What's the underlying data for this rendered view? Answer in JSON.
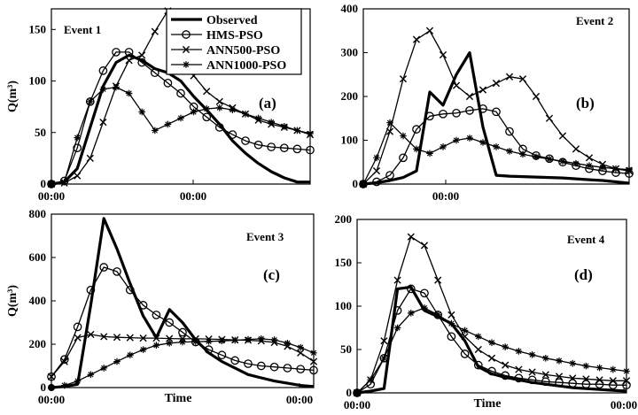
{
  "chart_data": [
    {
      "type": "line",
      "event": "Event 1",
      "panel": "(a)",
      "ylabel": "Q(m³)",
      "xlabel": "",
      "x_ticks": [
        "00:00",
        "00:00"
      ],
      "y_ticks": [
        0,
        50,
        100,
        150
      ],
      "xlim": [
        0,
        1
      ],
      "ylim": [
        0,
        170
      ],
      "series": [
        {
          "name": "Observed",
          "x": [
            0.0,
            0.05,
            0.1,
            0.15,
            0.2,
            0.25,
            0.3,
            0.35,
            0.4,
            0.45,
            0.5,
            0.55,
            0.6,
            0.65,
            0.7,
            0.75,
            0.8,
            0.85,
            0.9,
            0.95,
            1.0
          ],
          "y": [
            0,
            2,
            15,
            55,
            95,
            118,
            125,
            120,
            112,
            108,
            100,
            85,
            72,
            58,
            42,
            30,
            20,
            12,
            6,
            2,
            2
          ]
        },
        {
          "name": "HMS-PSO",
          "x": [
            0.0,
            0.05,
            0.1,
            0.15,
            0.2,
            0.25,
            0.3,
            0.35,
            0.4,
            0.45,
            0.5,
            0.55,
            0.6,
            0.65,
            0.7,
            0.75,
            0.8,
            0.85,
            0.9,
            0.95,
            1.0
          ],
          "y": [
            0,
            3,
            35,
            80,
            110,
            128,
            128,
            118,
            108,
            98,
            88,
            75,
            65,
            55,
            48,
            42,
            38,
            36,
            35,
            34,
            33
          ]
        },
        {
          "name": "ANN500-PSO",
          "x": [
            0.0,
            0.05,
            0.1,
            0.15,
            0.2,
            0.25,
            0.3,
            0.35,
            0.4,
            0.45,
            0.5,
            0.55,
            0.6,
            0.65,
            0.7,
            0.75,
            0.8,
            0.85,
            0.9,
            0.95,
            1.0
          ],
          "y": [
            0,
            1,
            8,
            25,
            60,
            95,
            120,
            125,
            148,
            168,
            140,
            105,
            90,
            80,
            74,
            68,
            62,
            58,
            55,
            52,
            48
          ]
        },
        {
          "name": "ANN1000-PSO",
          "x": [
            0.0,
            0.05,
            0.1,
            0.15,
            0.2,
            0.25,
            0.3,
            0.35,
            0.4,
            0.45,
            0.5,
            0.55,
            0.6,
            0.65,
            0.7,
            0.75,
            0.8,
            0.85,
            0.9,
            0.95,
            1.0
          ],
          "y": [
            0,
            2,
            45,
            80,
            92,
            94,
            88,
            70,
            52,
            58,
            64,
            70,
            73,
            74,
            72,
            68,
            64,
            60,
            56,
            52,
            49
          ]
        }
      ]
    },
    {
      "type": "line",
      "event": "Event 2",
      "panel": "(b)",
      "ylabel": "",
      "xlabel": "",
      "x_ticks": [
        "00:00"
      ],
      "y_ticks": [
        0,
        100,
        200,
        300,
        400
      ],
      "xlim": [
        0,
        1
      ],
      "ylim": [
        0,
        400
      ],
      "series": [
        {
          "name": "Observed",
          "x": [
            0.0,
            0.05,
            0.1,
            0.15,
            0.2,
            0.25,
            0.3,
            0.35,
            0.4,
            0.45,
            0.5,
            0.55,
            0.6,
            0.65,
            0.7,
            0.75,
            0.8,
            0.85,
            0.9,
            0.95,
            1.0
          ],
          "y": [
            0,
            3,
            8,
            15,
            30,
            210,
            180,
            250,
            300,
            130,
            20,
            18,
            17,
            16,
            15,
            14,
            12,
            10,
            8,
            5,
            2
          ]
        },
        {
          "name": "HMS-PSO",
          "x": [
            0.0,
            0.05,
            0.1,
            0.15,
            0.2,
            0.25,
            0.3,
            0.35,
            0.4,
            0.45,
            0.5,
            0.55,
            0.6,
            0.65,
            0.7,
            0.75,
            0.8,
            0.85,
            0.9,
            0.95,
            1.0
          ],
          "y": [
            0,
            5,
            20,
            60,
            125,
            155,
            160,
            162,
            168,
            172,
            165,
            120,
            80,
            65,
            58,
            50,
            42,
            35,
            30,
            26,
            24
          ]
        },
        {
          "name": "ANN500-PSO",
          "x": [
            0.0,
            0.05,
            0.1,
            0.15,
            0.2,
            0.25,
            0.3,
            0.35,
            0.4,
            0.45,
            0.5,
            0.55,
            0.6,
            0.65,
            0.7,
            0.75,
            0.8,
            0.85,
            0.9,
            0.95,
            1.0
          ],
          "y": [
            0,
            30,
            120,
            240,
            330,
            350,
            295,
            225,
            200,
            215,
            230,
            245,
            240,
            200,
            150,
            110,
            80,
            60,
            45,
            35,
            30
          ]
        },
        {
          "name": "ANN1000-PSO",
          "x": [
            0.0,
            0.05,
            0.1,
            0.15,
            0.2,
            0.25,
            0.3,
            0.35,
            0.4,
            0.45,
            0.5,
            0.55,
            0.6,
            0.65,
            0.7,
            0.75,
            0.8,
            0.85,
            0.9,
            0.95,
            1.0
          ],
          "y": [
            0,
            60,
            140,
            110,
            80,
            70,
            85,
            100,
            105,
            95,
            85,
            75,
            68,
            62,
            57,
            52,
            47,
            42,
            38,
            35,
            33
          ]
        }
      ]
    },
    {
      "type": "line",
      "event": "Event 3",
      "panel": "(c)",
      "ylabel": "Q(m³)",
      "xlabel": "Time",
      "x_ticks": [
        "00:00",
        "00:00"
      ],
      "y_ticks": [
        0,
        200,
        400,
        600,
        800
      ],
      "xlim": [
        0,
        1
      ],
      "ylim": [
        0,
        800
      ],
      "series": [
        {
          "name": "Observed",
          "x": [
            0.0,
            0.05,
            0.1,
            0.15,
            0.2,
            0.25,
            0.3,
            0.35,
            0.4,
            0.45,
            0.5,
            0.55,
            0.6,
            0.65,
            0.7,
            0.75,
            0.8,
            0.85,
            0.9,
            0.95,
            1.0
          ],
          "y": [
            0,
            5,
            15,
            380,
            780,
            640,
            480,
            330,
            230,
            360,
            300,
            220,
            160,
            120,
            90,
            60,
            45,
            30,
            20,
            10,
            5
          ]
        },
        {
          "name": "HMS-PSO",
          "x": [
            0.0,
            0.05,
            0.1,
            0.15,
            0.2,
            0.25,
            0.3,
            0.35,
            0.4,
            0.45,
            0.5,
            0.55,
            0.6,
            0.65,
            0.7,
            0.75,
            0.8,
            0.85,
            0.9,
            0.95,
            1.0
          ],
          "y": [
            50,
            130,
            280,
            450,
            555,
            535,
            450,
            380,
            335,
            300,
            255,
            210,
            175,
            150,
            125,
            110,
            100,
            95,
            90,
            85,
            80
          ]
        },
        {
          "name": "ANN500-PSO",
          "x": [
            0.0,
            0.05,
            0.1,
            0.15,
            0.2,
            0.25,
            0.3,
            0.35,
            0.4,
            0.45,
            0.5,
            0.55,
            0.6,
            0.65,
            0.7,
            0.75,
            0.8,
            0.85,
            0.9,
            0.95,
            1.0
          ],
          "y": [
            50,
            120,
            230,
            245,
            235,
            232,
            230,
            228,
            228,
            226,
            225,
            225,
            224,
            222,
            220,
            218,
            215,
            208,
            190,
            160,
            120
          ]
        },
        {
          "name": "ANN1000-PSO",
          "x": [
            0.0,
            0.05,
            0.1,
            0.15,
            0.2,
            0.25,
            0.3,
            0.35,
            0.4,
            0.45,
            0.5,
            0.55,
            0.6,
            0.65,
            0.7,
            0.75,
            0.8,
            0.85,
            0.9,
            0.95,
            1.0
          ],
          "y": [
            0,
            10,
            30,
            60,
            90,
            120,
            150,
            175,
            195,
            205,
            210,
            212,
            213,
            215,
            218,
            222,
            225,
            220,
            205,
            185,
            160
          ]
        }
      ]
    },
    {
      "type": "line",
      "event": "Event 4",
      "panel": "(d)",
      "ylabel": "",
      "xlabel": "Time",
      "x_ticks": [
        "00:00",
        "00:00"
      ],
      "y_ticks": [
        0,
        50,
        100,
        150,
        200
      ],
      "xlim": [
        0,
        1
      ],
      "ylim": [
        0,
        200
      ],
      "series": [
        {
          "name": "Observed",
          "x": [
            0.0,
            0.05,
            0.1,
            0.15,
            0.2,
            0.25,
            0.3,
            0.35,
            0.4,
            0.45,
            0.5,
            0.55,
            0.6,
            0.65,
            0.7,
            0.75,
            0.8,
            0.85,
            0.9,
            0.95,
            1.0
          ],
          "y": [
            0,
            2,
            5,
            120,
            122,
            95,
            88,
            80,
            60,
            30,
            22,
            18,
            15,
            12,
            10,
            8,
            6,
            5,
            4,
            3,
            2
          ]
        },
        {
          "name": "HMS-PSO",
          "x": [
            0.0,
            0.05,
            0.1,
            0.15,
            0.2,
            0.25,
            0.3,
            0.35,
            0.4,
            0.45,
            0.5,
            0.55,
            0.6,
            0.65,
            0.7,
            0.75,
            0.8,
            0.85,
            0.9,
            0.95,
            1.0
          ],
          "y": [
            0,
            10,
            40,
            95,
            120,
            115,
            90,
            65,
            45,
            32,
            25,
            20,
            17,
            15,
            13,
            12,
            11,
            10,
            10,
            9,
            9
          ]
        },
        {
          "name": "ANN500-PSO",
          "x": [
            0.0,
            0.05,
            0.1,
            0.15,
            0.2,
            0.25,
            0.3,
            0.35,
            0.4,
            0.45,
            0.5,
            0.55,
            0.6,
            0.65,
            0.7,
            0.75,
            0.8,
            0.85,
            0.9,
            0.95,
            1.0
          ],
          "y": [
            0,
            15,
            60,
            130,
            180,
            170,
            130,
            90,
            65,
            50,
            40,
            32,
            27,
            24,
            21,
            19,
            17,
            16,
            15,
            14,
            14
          ]
        },
        {
          "name": "ANN1000-PSO",
          "x": [
            0.0,
            0.05,
            0.1,
            0.15,
            0.2,
            0.25,
            0.3,
            0.35,
            0.4,
            0.45,
            0.5,
            0.55,
            0.6,
            0.65,
            0.7,
            0.75,
            0.8,
            0.85,
            0.9,
            0.95,
            1.0
          ],
          "y": [
            0,
            15,
            40,
            75,
            92,
            98,
            90,
            80,
            72,
            65,
            58,
            53,
            48,
            44,
            40,
            37,
            34,
            31,
            29,
            27,
            25
          ]
        }
      ]
    }
  ],
  "legend": {
    "placement": "top-center",
    "entries": [
      "Observed",
      "HMS-PSO",
      "ANN500-PSO",
      "ANN1000-PSO"
    ]
  }
}
